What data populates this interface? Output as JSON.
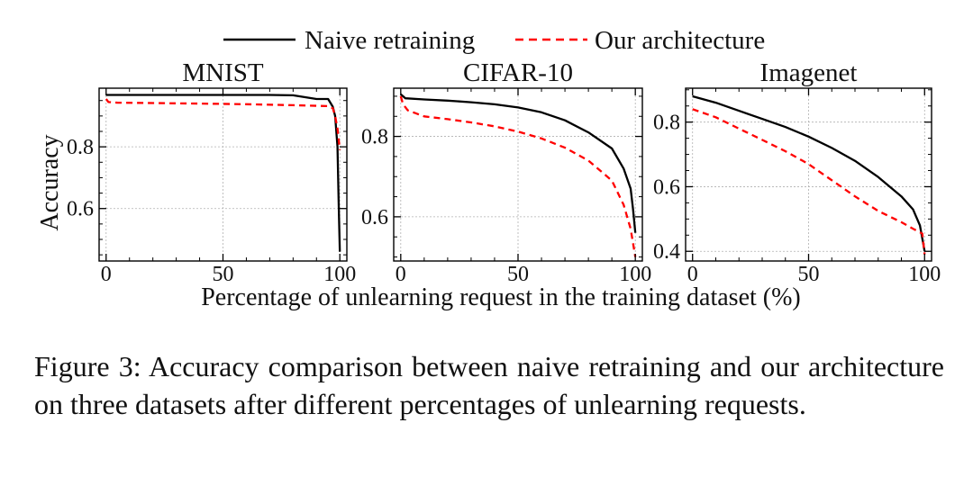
{
  "legend": {
    "naive": "Naive retraining",
    "ours": "Our architecture"
  },
  "shared": {
    "ylabel": "Accuracy",
    "xlabel": "Percentage of unlearning request in the training dataset (%)"
  },
  "colors": {
    "naive": "#000000",
    "ours": "#ff0000",
    "grid": "#b0b0b0"
  },
  "chart_data": [
    {
      "type": "line",
      "title": "MNIST",
      "xlim": [
        -3,
        103
      ],
      "ylim": [
        0.43,
        0.99
      ],
      "xticks": [
        0,
        50,
        100
      ],
      "yticks": [
        0.6,
        0.8
      ],
      "x_tick_labels": [
        "0",
        "50",
        "100"
      ],
      "y_tick_labels": [
        "0.6",
        "0.8"
      ],
      "series": [
        {
          "name": "Naive retraining",
          "style": "solid",
          "x": [
            0,
            10,
            20,
            30,
            40,
            50,
            60,
            70,
            80,
            90,
            95,
            97,
            98,
            99,
            99.5,
            100
          ],
          "y": [
            0.968,
            0.968,
            0.968,
            0.968,
            0.968,
            0.968,
            0.968,
            0.968,
            0.967,
            0.955,
            0.955,
            0.93,
            0.9,
            0.8,
            0.62,
            0.46
          ]
        },
        {
          "name": "Our architecture",
          "style": "dashed",
          "x": [
            0,
            1,
            5,
            20,
            40,
            60,
            80,
            95,
            97,
            98,
            99,
            100
          ],
          "y": [
            0.955,
            0.945,
            0.943,
            0.942,
            0.94,
            0.938,
            0.935,
            0.932,
            0.925,
            0.9,
            0.86,
            0.79
          ]
        }
      ]
    },
    {
      "type": "line",
      "title": "CIFAR-10",
      "xlim": [
        -3,
        103
      ],
      "ylim": [
        0.49,
        0.92
      ],
      "xticks": [
        0,
        50,
        100
      ],
      "yticks": [
        0.6,
        0.8
      ],
      "x_tick_labels": [
        "0",
        "50",
        "100"
      ],
      "y_tick_labels": [
        "0.6",
        "0.8"
      ],
      "series": [
        {
          "name": "Naive retraining",
          "style": "solid",
          "x": [
            0,
            2,
            10,
            20,
            30,
            40,
            50,
            60,
            70,
            80,
            90,
            95,
            98,
            99,
            100
          ],
          "y": [
            0.905,
            0.895,
            0.892,
            0.889,
            0.885,
            0.88,
            0.872,
            0.86,
            0.84,
            0.81,
            0.77,
            0.72,
            0.67,
            0.62,
            0.56
          ]
        },
        {
          "name": "Our architecture",
          "style": "dashed",
          "x": [
            0,
            1,
            3,
            10,
            20,
            30,
            40,
            50,
            60,
            70,
            80,
            90,
            95,
            98,
            100
          ],
          "y": [
            0.9,
            0.88,
            0.865,
            0.85,
            0.843,
            0.835,
            0.825,
            0.812,
            0.795,
            0.772,
            0.74,
            0.69,
            0.63,
            0.57,
            0.5
          ]
        }
      ]
    },
    {
      "type": "line",
      "title": "Imagenet",
      "xlim": [
        -3,
        103
      ],
      "ylim": [
        0.37,
        0.905
      ],
      "xticks": [
        0,
        50,
        100
      ],
      "yticks": [
        0.4,
        0.6,
        0.8
      ],
      "x_tick_labels": [
        "0",
        "50",
        "100"
      ],
      "y_tick_labels": [
        "0.4",
        "0.6",
        "0.8"
      ],
      "series": [
        {
          "name": "Naive retraining",
          "style": "solid",
          "x": [
            0,
            10,
            20,
            30,
            40,
            50,
            60,
            70,
            80,
            90,
            95,
            98,
            100
          ],
          "y": [
            0.88,
            0.86,
            0.835,
            0.81,
            0.785,
            0.755,
            0.72,
            0.68,
            0.63,
            0.57,
            0.53,
            0.48,
            0.4
          ]
        },
        {
          "name": "Our architecture",
          "style": "dashed",
          "x": [
            0,
            10,
            20,
            30,
            40,
            50,
            60,
            70,
            80,
            90,
            95,
            99,
            100
          ],
          "y": [
            0.84,
            0.815,
            0.78,
            0.745,
            0.71,
            0.67,
            0.62,
            0.57,
            0.525,
            0.49,
            0.47,
            0.455,
            0.39
          ]
        }
      ]
    }
  ],
  "caption": "Figure 3: Accuracy comparison between naive retraining and our architecture on three datasets after different percentages of unlearning requests."
}
